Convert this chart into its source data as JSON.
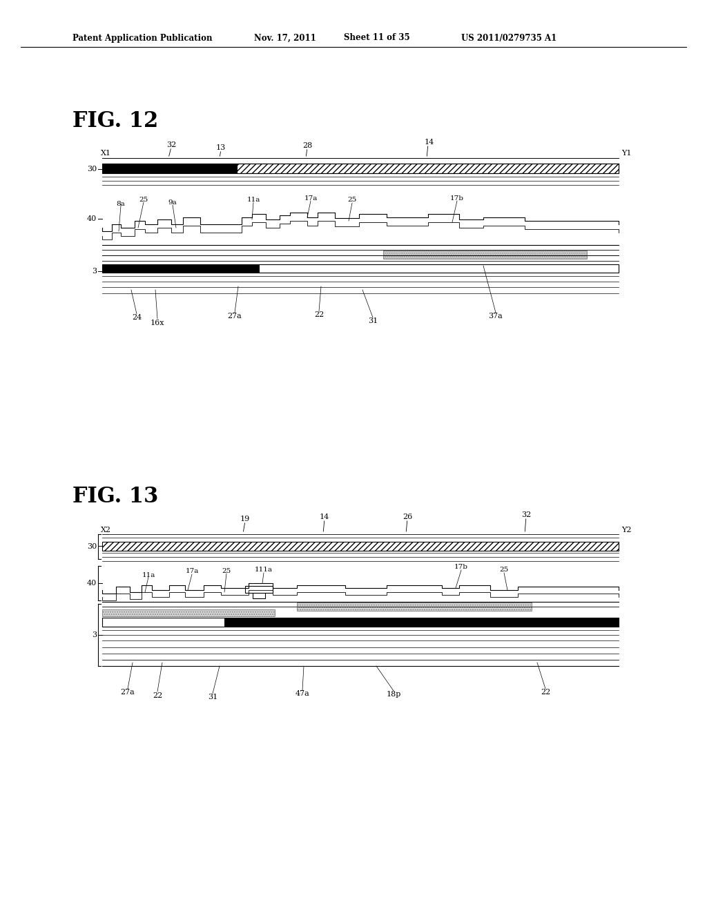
{
  "bg_color": "#ffffff",
  "header_text": "Patent Application Publication",
  "header_date": "Nov. 17, 2011",
  "header_sheet": "Sheet 11 of 35",
  "header_patent": "US 2011/0279735 A1",
  "fig12_title": "FIG. 12",
  "fig13_title": "FIG. 13"
}
